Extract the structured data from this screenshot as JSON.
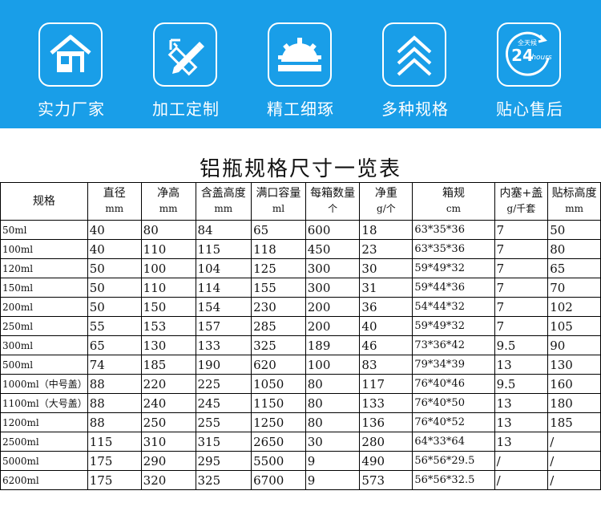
{
  "banner": {
    "background": "#199ee8",
    "features": [
      {
        "icon": "factory-house-icon",
        "label": "实力厂家"
      },
      {
        "icon": "pencil-ruler-icon",
        "label": "加工定制"
      },
      {
        "icon": "gear-precision-icon",
        "label": "精工细琢"
      },
      {
        "icon": "chevrons-up-icon",
        "label": "多种规格"
      },
      {
        "icon": "24-hours-service-icon",
        "label": "贴心售后",
        "badge_top": "全天候",
        "badge_number": "24",
        "badge_unit": "hours"
      }
    ]
  },
  "table": {
    "title": "铝瓶规格尺寸一览表",
    "headers": [
      {
        "label": "规格",
        "unit": ""
      },
      {
        "label": "直径",
        "unit": "mm"
      },
      {
        "label": "净高",
        "unit": "mm"
      },
      {
        "label": "含盖高度",
        "unit": "mm"
      },
      {
        "label": "满口容量",
        "unit": "ml"
      },
      {
        "label": "每箱数量",
        "unit": "个"
      },
      {
        "label": "净重",
        "unit": "g/个"
      },
      {
        "label": "箱规",
        "unit": "cm"
      },
      {
        "label": "内塞+盖",
        "unit": "g/千套"
      },
      {
        "label": "贴标高度",
        "unit": "mm"
      }
    ],
    "rows": [
      [
        "50ml",
        "40",
        "80",
        "84",
        "65",
        "600",
        "18",
        "63*35*36",
        "7",
        "50"
      ],
      [
        "100ml",
        "40",
        "110",
        "115",
        "118",
        "450",
        "23",
        "63*35*36",
        "7",
        "80"
      ],
      [
        "120ml",
        "50",
        "100",
        "104",
        "125",
        "300",
        "30",
        "59*49*32",
        "7",
        "65"
      ],
      [
        "150ml",
        "50",
        "110",
        "114",
        "155",
        "300",
        "31",
        "59*44*36",
        "7",
        "70"
      ],
      [
        "200ml",
        "50",
        "150",
        "154",
        "230",
        "200",
        "36",
        "54*44*32",
        "7",
        "102"
      ],
      [
        "250ml",
        "55",
        "153",
        "157",
        "285",
        "200",
        "40",
        "59*49*32",
        "7",
        "105"
      ],
      [
        "300ml",
        "65",
        "130",
        "133",
        "325",
        "189",
        "46",
        "73*36*42",
        "9.5",
        "90"
      ],
      [
        "500ml",
        "74",
        "185",
        "190",
        "620",
        "100",
        "83",
        "79*34*39",
        "13",
        "130"
      ],
      [
        "1000ml（中号盖）",
        "88",
        "220",
        "225",
        "1050",
        "80",
        "117",
        "76*40*46",
        "9.5",
        "160"
      ],
      [
        "1100ml（大号盖）",
        "88",
        "240",
        "245",
        "1150",
        "80",
        "133",
        "76*40*50",
        "13",
        "180"
      ],
      [
        "1200ml",
        "88",
        "250",
        "255",
        "1250",
        "80",
        "136",
        "76*40*52",
        "13",
        "185"
      ],
      [
        "2500ml",
        "115",
        "310",
        "315",
        "2650",
        "30",
        "280",
        "64*33*64",
        "13",
        "/"
      ],
      [
        "5000ml",
        "175",
        "290",
        "295",
        "5500",
        "9",
        "490",
        "56*56*29.5",
        "/",
        "/"
      ],
      [
        "6200ml",
        "175",
        "320",
        "325",
        "6700",
        "9",
        "573",
        "56*56*32.5",
        "/",
        "/"
      ]
    ]
  }
}
